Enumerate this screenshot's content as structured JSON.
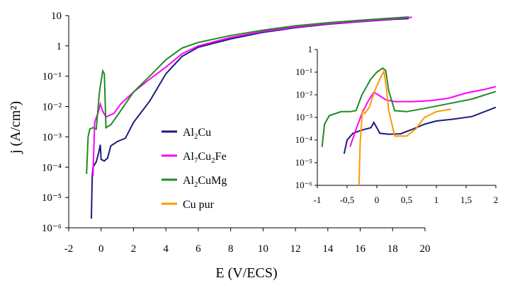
{
  "chart_data": [
    {
      "type": "line",
      "title": "",
      "xlabel": "E (V/ECS)",
      "ylabel": "j (A/cm²)",
      "x_scale": "linear",
      "y_scale": "log",
      "xlim": [
        -2,
        20
      ],
      "ylim": [
        1e-06,
        10
      ],
      "x_ticks": [
        "-2",
        "0",
        "2",
        "4",
        "6",
        "8",
        "10",
        "12",
        "14",
        "16",
        "18",
        "20"
      ],
      "y_ticks": [
        "10⁻⁶",
        "10⁻⁵",
        "10⁻⁴",
        "10⁻³",
        "10⁻²",
        "10⁻¹",
        "1",
        "10"
      ],
      "legend_position": "center",
      "series": [
        {
          "name": "Al2Cu",
          "color": "#1c1c7c",
          "points": [
            [
              -0.6,
              2e-06
            ],
            [
              -0.55,
              5e-05
            ],
            [
              -0.5,
              0.0001
            ],
            [
              -0.3,
              0.00015
            ],
            [
              -0.15,
              0.0003
            ],
            [
              -0.05,
              0.00055
            ],
            [
              0.0,
              0.00018
            ],
            [
              0.2,
              0.00016
            ],
            [
              0.4,
              0.0002
            ],
            [
              0.6,
              0.0005
            ],
            [
              1.0,
              0.0007
            ],
            [
              1.5,
              0.0009
            ],
            [
              2.0,
              0.003
            ],
            [
              3.0,
              0.015
            ],
            [
              4.0,
              0.12
            ],
            [
              5.0,
              0.45
            ],
            [
              6.0,
              0.9
            ],
            [
              8.0,
              1.7
            ],
            [
              10.0,
              2.8
            ],
            [
              12.0,
              4.0
            ],
            [
              14.0,
              5.2
            ],
            [
              16.0,
              6.3
            ],
            [
              18.0,
              7.5
            ],
            [
              19.0,
              8.0
            ]
          ]
        },
        {
          "name": "Al7Cu2Fe",
          "color": "#ff00ff",
          "points": [
            [
              -0.5,
              5e-05
            ],
            [
              -0.4,
              0.003
            ],
            [
              -0.2,
              0.006
            ],
            [
              -0.05,
              0.012
            ],
            [
              0.1,
              0.007
            ],
            [
              0.3,
              0.0045
            ],
            [
              0.8,
              0.006
            ],
            [
              1.2,
              0.012
            ],
            [
              2.0,
              0.03
            ],
            [
              3.0,
              0.08
            ],
            [
              4.0,
              0.2
            ],
            [
              5.0,
              0.55
            ],
            [
              6.0,
              1.0
            ],
            [
              8.0,
              1.9
            ],
            [
              10.0,
              3.0
            ],
            [
              12.0,
              4.2
            ],
            [
              14.0,
              5.4
            ],
            [
              16.0,
              6.5
            ],
            [
              18.0,
              7.8
            ],
            [
              19.2,
              8.8
            ]
          ]
        },
        {
          "name": "Al2CuMg",
          "color": "#228b22",
          "points": [
            [
              -0.9,
              6e-05
            ],
            [
              -0.8,
              0.001
            ],
            [
              -0.7,
              0.0018
            ],
            [
              -0.5,
              0.002
            ],
            [
              -0.3,
              0.0018
            ],
            [
              -0.1,
              0.03
            ],
            [
              0.1,
              0.15
            ],
            [
              0.2,
              0.12
            ],
            [
              0.3,
              0.002
            ],
            [
              0.6,
              0.0025
            ],
            [
              1.0,
              0.005
            ],
            [
              2.0,
              0.03
            ],
            [
              3.0,
              0.1
            ],
            [
              4.0,
              0.35
            ],
            [
              5.0,
              0.85
            ],
            [
              6.0,
              1.3
            ],
            [
              8.0,
              2.2
            ],
            [
              10.0,
              3.3
            ],
            [
              12.0,
              4.6
            ],
            [
              14.0,
              5.8
            ],
            [
              16.0,
              7.0
            ],
            [
              18.0,
              8.3
            ],
            [
              19.0,
              9.0
            ]
          ]
        }
      ],
      "legend": [
        {
          "label_base": "Al",
          "label_sub": "2",
          "label_rest": "Cu",
          "color": "#1c1c7c"
        },
        {
          "label_base": "Al",
          "label_sub": "7",
          "label_rest": "Cu",
          "label_sub2": "2",
          "label_rest2": "Fe",
          "color": "#ff00ff"
        },
        {
          "label_base": "Al",
          "label_sub": "2",
          "label_rest": "CuMg",
          "color": "#228b22"
        },
        {
          "label_base": "Cu pur",
          "color": "#ff9900"
        }
      ]
    },
    {
      "type": "line",
      "title": "",
      "xlabel": "",
      "ylabel": "",
      "x_scale": "linear",
      "y_scale": "log",
      "xlim": [
        -1,
        2
      ],
      "ylim": [
        1e-06,
        1
      ],
      "x_ticks": [
        "-1",
        "-0,5",
        "0",
        "0,5",
        "1",
        "1,5",
        "2"
      ],
      "y_ticks": [
        "10⁻⁶",
        "10⁻⁵",
        "10⁻⁴",
        "10⁻³",
        "10⁻²",
        "10⁻¹",
        "1"
      ],
      "series": [
        {
          "name": "Al2Cu",
          "color": "#1c1c7c",
          "points": [
            [
              -0.55,
              2.5e-05
            ],
            [
              -0.5,
              0.0001
            ],
            [
              -0.4,
              0.0002
            ],
            [
              -0.3,
              0.00025
            ],
            [
              -0.2,
              0.0003
            ],
            [
              -0.1,
              0.00035
            ],
            [
              -0.05,
              0.0006
            ],
            [
              0.0,
              0.00035
            ],
            [
              0.05,
              0.0002
            ],
            [
              0.2,
              0.00018
            ],
            [
              0.4,
              0.00019
            ],
            [
              0.6,
              0.0003
            ],
            [
              0.8,
              0.0005
            ],
            [
              1.0,
              0.0007
            ],
            [
              1.3,
              0.00085
            ],
            [
              1.6,
              0.0011
            ],
            [
              2.0,
              0.0028
            ]
          ]
        },
        {
          "name": "Al7Cu2Fe",
          "color": "#ff00ff",
          "points": [
            [
              -0.45,
              5e-05
            ],
            [
              -0.35,
              0.0003
            ],
            [
              -0.25,
              0.0015
            ],
            [
              -0.15,
              0.005
            ],
            [
              -0.05,
              0.013
            ],
            [
              0.05,
              0.009
            ],
            [
              0.15,
              0.006
            ],
            [
              0.3,
              0.005
            ],
            [
              0.6,
              0.005
            ],
            [
              0.9,
              0.0055
            ],
            [
              1.2,
              0.007
            ],
            [
              1.5,
              0.012
            ],
            [
              1.8,
              0.017
            ],
            [
              2.0,
              0.023
            ]
          ]
        },
        {
          "name": "Al2CuMg",
          "color": "#228b22",
          "points": [
            [
              -0.92,
              5e-05
            ],
            [
              -0.88,
              0.0005
            ],
            [
              -0.8,
              0.0012
            ],
            [
              -0.6,
              0.0018
            ],
            [
              -0.45,
              0.0018
            ],
            [
              -0.35,
              0.002
            ],
            [
              -0.25,
              0.01
            ],
            [
              -0.1,
              0.05
            ],
            [
              0.0,
              0.1
            ],
            [
              0.1,
              0.15
            ],
            [
              0.15,
              0.12
            ],
            [
              0.2,
              0.015
            ],
            [
              0.3,
              0.002
            ],
            [
              0.5,
              0.0018
            ],
            [
              0.8,
              0.0025
            ],
            [
              1.2,
              0.004
            ],
            [
              1.6,
              0.0065
            ],
            [
              2.0,
              0.014
            ]
          ]
        },
        {
          "name": "Cu pur",
          "color": "#ff9900",
          "points": [
            [
              -0.3,
              1e-06
            ],
            [
              -0.28,
              8e-05
            ],
            [
              -0.24,
              0.002
            ],
            [
              -0.2,
              0.0015
            ],
            [
              -0.12,
              0.003
            ],
            [
              -0.05,
              0.012
            ],
            [
              0.05,
              0.05
            ],
            [
              0.12,
              0.11
            ],
            [
              0.16,
              0.02
            ],
            [
              0.2,
              0.002
            ],
            [
              0.3,
              0.00015
            ],
            [
              0.5,
              0.00015
            ],
            [
              0.65,
              0.0003
            ],
            [
              0.8,
              0.001
            ],
            [
              1.0,
              0.0018
            ],
            [
              1.25,
              0.0023
            ]
          ]
        }
      ]
    }
  ]
}
